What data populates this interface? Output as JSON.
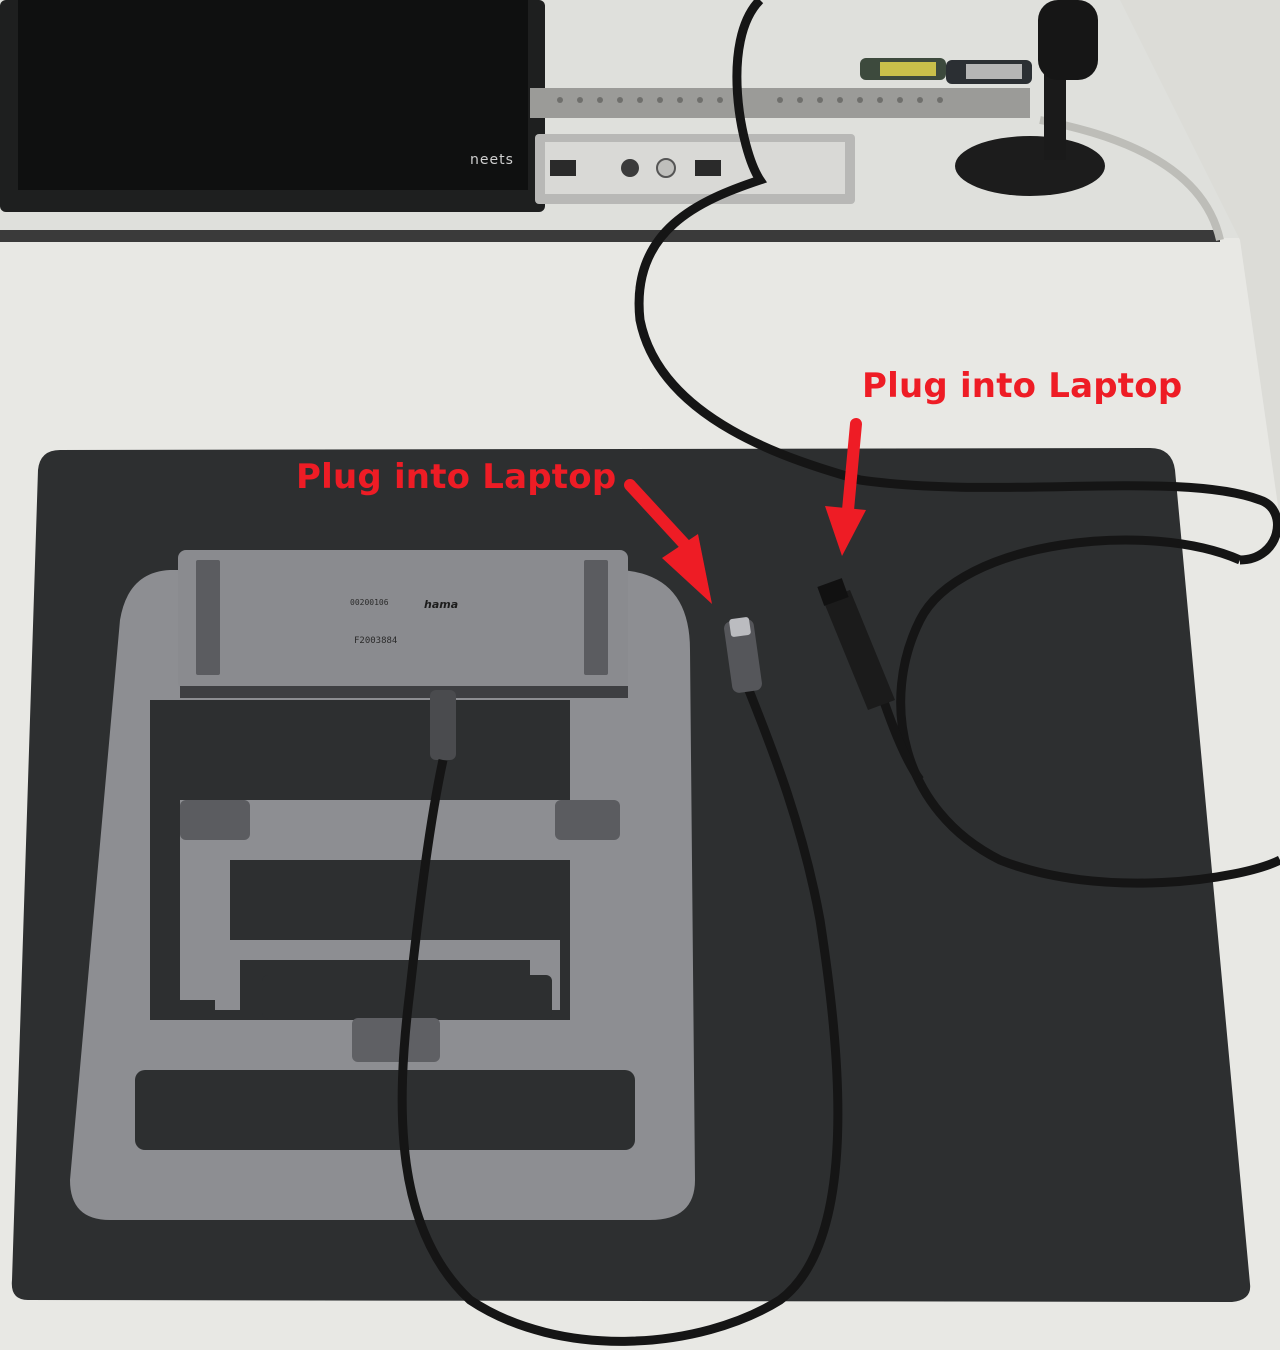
{
  "annotations": {
    "label_left": "Plug into Laptop",
    "label_right": "Plug into Laptop",
    "color": "#ee1c25"
  },
  "monitor": {
    "brand": "neets"
  },
  "hub": {
    "brand": "hama",
    "serial": "F2003884",
    "model": "00200106",
    "body_color": "#8a8b8f"
  },
  "stand": {
    "color": "#8d8e92"
  },
  "desk_mat": {
    "color": "#2d2f30"
  },
  "desk": {
    "color": "#e9e9e6"
  },
  "icons": [
    "arrow-down-icon",
    "usb-c-plug-icon",
    "displayport-plug-icon"
  ]
}
